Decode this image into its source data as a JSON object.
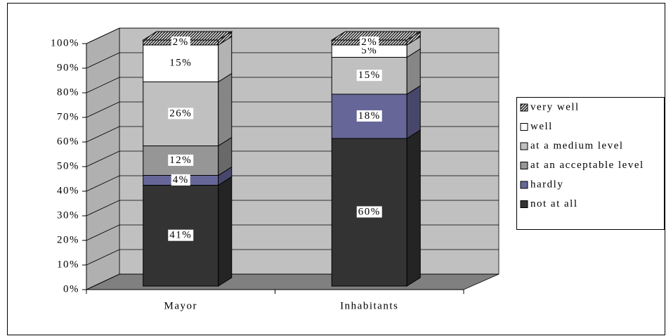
{
  "chart_data": {
    "type": "bar",
    "stacked": true,
    "categories": [
      "Mayor",
      "Inhabitants"
    ],
    "series": [
      {
        "name": "not at all",
        "color": "#333333",
        "values": [
          41,
          60
        ],
        "value_labels": [
          "41%",
          "60%"
        ]
      },
      {
        "name": "hardly",
        "color": "#666699",
        "values": [
          4,
          18
        ],
        "value_labels": [
          "4%",
          "18%"
        ]
      },
      {
        "name": "at an acceptable level",
        "color": "#969696",
        "values": [
          12,
          null
        ],
        "value_labels": [
          "12%",
          null
        ]
      },
      {
        "name": "at a medium level",
        "color": "#c0c0c0",
        "values": [
          26,
          15
        ],
        "value_labels": [
          "26%",
          "15%"
        ]
      },
      {
        "name": "well",
        "color": "#ffffff",
        "values": [
          15,
          5
        ],
        "value_labels": [
          "15%",
          "5%"
        ]
      },
      {
        "name": "very well",
        "color": "#555555",
        "values": [
          2,
          2
        ],
        "value_labels": [
          "2%",
          "2%"
        ]
      }
    ],
    "ylim": [
      0,
      100
    ],
    "yticks": [
      {
        "value": 0,
        "label": "0%"
      },
      {
        "value": 10,
        "label": "10%"
      },
      {
        "value": 20,
        "label": "20%"
      },
      {
        "value": 30,
        "label": "30%"
      },
      {
        "value": 40,
        "label": "40%"
      },
      {
        "value": 50,
        "label": "50%"
      },
      {
        "value": 60,
        "label": "60%"
      },
      {
        "value": 70,
        "label": "70%"
      },
      {
        "value": 80,
        "label": "80%"
      },
      {
        "value": 90,
        "label": "90%"
      },
      {
        "value": 100,
        "label": "100%"
      }
    ],
    "grid": true,
    "legend": "right"
  }
}
